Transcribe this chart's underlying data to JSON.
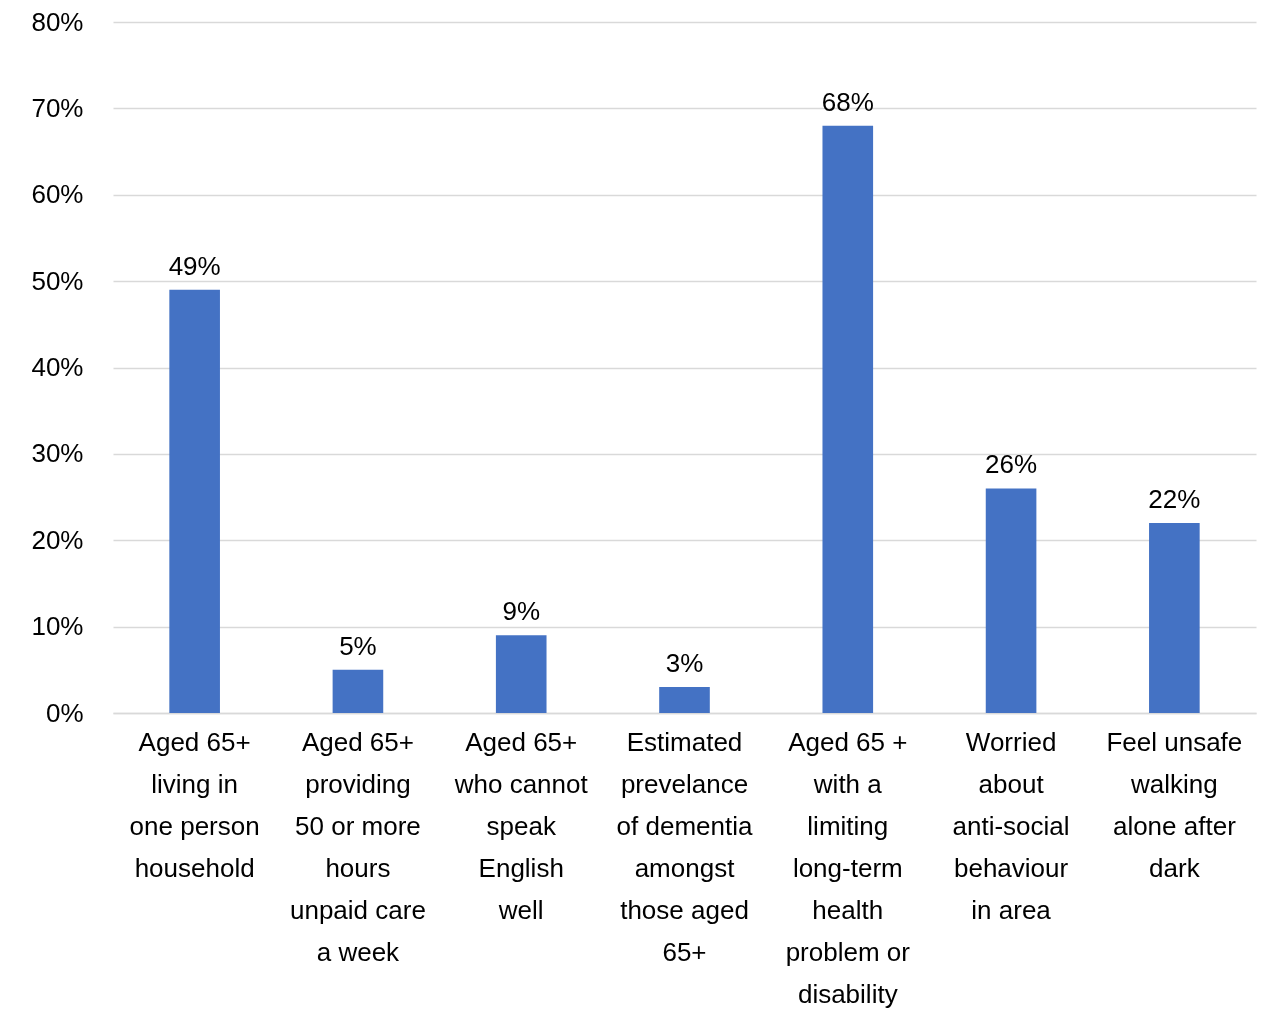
{
  "chart_data": {
    "type": "bar",
    "categories": [
      "Aged 65+ living in one person household",
      "Aged 65+ providing 50 or more hours unpaid care a week",
      "Aged 65+ who cannot speak English well",
      "Estimated prevelance of dementia amongst those aged 65+",
      "Aged 65 + with a limiting long-term health problem or disability",
      "Worried about anti-social behaviour in area",
      "Feel unsafe walking alone after dark"
    ],
    "values": [
      49,
      5,
      9,
      3,
      68,
      26,
      22
    ],
    "value_labels": [
      "49%",
      "5%",
      "9%",
      "3%",
      "68%",
      "26%",
      "22%"
    ],
    "color": "#4472c4",
    "ylim": [
      0,
      80
    ],
    "yticks": [
      {
        "value": 0,
        "label": "0%"
      },
      {
        "value": 10,
        "label": "10%"
      },
      {
        "value": 20,
        "label": "20%"
      },
      {
        "value": 30,
        "label": "30%"
      },
      {
        "value": 40,
        "label": "40%"
      },
      {
        "value": 50,
        "label": "50%"
      },
      {
        "value": 60,
        "label": "60%"
      },
      {
        "value": 70,
        "label": "70%"
      },
      {
        "value": 80,
        "label": "80%"
      }
    ],
    "grid": "y"
  }
}
